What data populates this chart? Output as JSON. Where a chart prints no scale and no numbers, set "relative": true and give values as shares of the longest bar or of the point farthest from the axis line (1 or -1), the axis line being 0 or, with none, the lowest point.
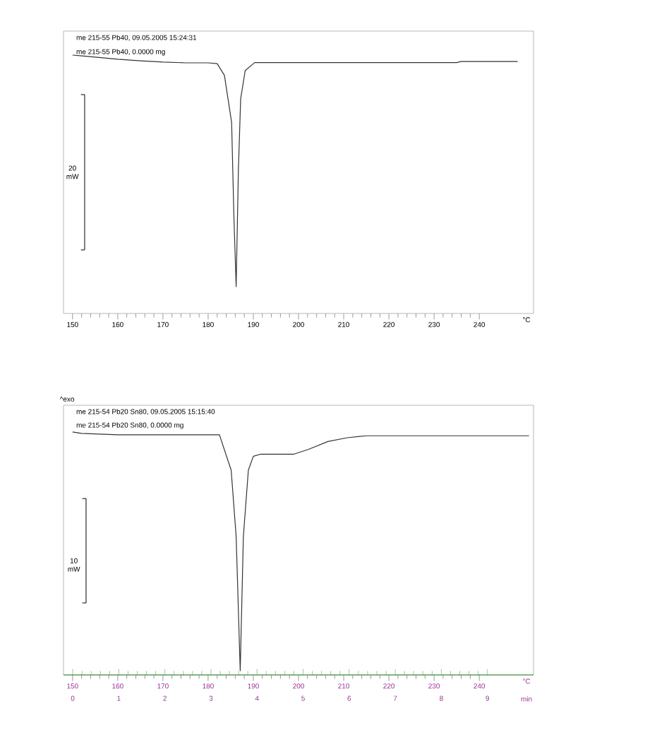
{
  "chart_data": [
    {
      "type": "line",
      "relative": true,
      "tick_labels": "x",
      "color": "#333333",
      "x": [
        150,
        152,
        155,
        160,
        165,
        170,
        175,
        180,
        182,
        183.6,
        184.4,
        185.2,
        185.7,
        186.2,
        186.7,
        187.2,
        188.2,
        190.3,
        200,
        235,
        236,
        248.5
      ],
      "values": [
        1.0,
        0.997,
        0.992,
        0.984,
        0.978,
        0.973,
        0.97,
        0.97,
        0.967,
        0.922,
        0.831,
        0.739,
        0.377,
        0.104,
        0.557,
        0.831,
        0.94,
        0.971,
        0.971,
        0.971,
        0.975,
        0.975
      ],
      "xlim": [
        148,
        252
      ],
      "xticks": [
        150,
        160,
        170,
        180,
        190,
        200,
        210,
        220,
        230,
        240
      ],
      "xlabel": "°C",
      "annotations": [
        "me 215-55 Pb40, 09.05.2005 15:24:31",
        "me 215-55 Pb40, 0.0000 mg",
        "20 mW"
      ]
    },
    {
      "type": "line",
      "relative": true,
      "tick_labels": "x",
      "color": "#333333",
      "x": [
        150,
        152,
        160,
        182.5,
        185.1,
        186.2,
        187.1,
        187.8,
        188.9,
        190.0,
        191.6,
        199.0,
        202.2,
        206.5,
        210.8,
        215.1,
        251
      ],
      "values": [
        1.0,
        0.994,
        0.988,
        0.988,
        0.84,
        0.562,
        0.0,
        0.562,
        0.84,
        0.898,
        0.907,
        0.907,
        0.927,
        0.96,
        0.976,
        0.984,
        0.984
      ],
      "xlim": [
        148,
        252
      ],
      "xticks": [
        150,
        160,
        170,
        180,
        190,
        200,
        210,
        220,
        230,
        240
      ],
      "xlabel": "°C",
      "x2lim": [
        -0.2,
        10.0
      ],
      "x2ticks": [
        0,
        1,
        2,
        3,
        4,
        5,
        6,
        7,
        8,
        9
      ],
      "x2label": "min",
      "annotations": [
        "me 215-54 Pb20 Sn80, 09.05.2005 15:15:40",
        "me 215-54 Pb20 Sn80, 0.0000 mg",
        "10 mW",
        "^exo"
      ]
    }
  ]
}
